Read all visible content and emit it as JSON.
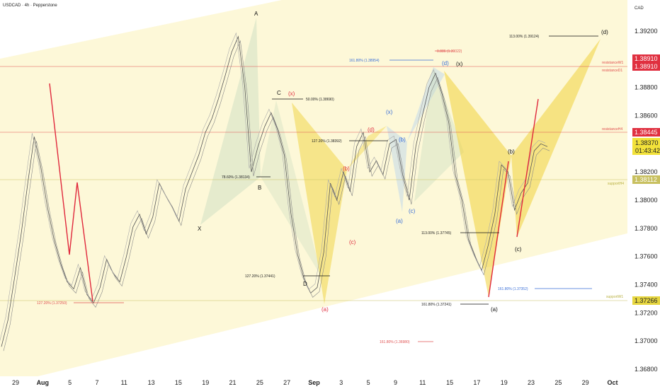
{
  "header": {
    "title": "USDCAD · 4h · Pepperstone",
    "currency": "CAD"
  },
  "chart_data": {
    "type": "line",
    "symbol": "USDCAD",
    "timeframe": "4h",
    "broker": "Pepperstone",
    "x_ticks": [
      "29",
      "Aug",
      "5",
      "7",
      "11",
      "13",
      "15",
      "19",
      "21",
      "25",
      "27",
      "Sep",
      "3",
      "5",
      "9",
      "11",
      "15",
      "17",
      "19",
      "23",
      "25",
      "29",
      "Oct"
    ],
    "y_ticks": [
      "1.39200",
      "1.39000",
      "1.38800",
      "1.38600",
      "1.38400",
      "1.38200",
      "1.38000",
      "1.37800",
      "1.37600",
      "1.37400",
      "1.37200",
      "1.37000",
      "1.36800"
    ],
    "y_range": [
      1.3675,
      1.3938
    ],
    "series": [
      {
        "values": [
          1.3696,
          1.3715,
          1.3745,
          1.3776,
          1.3812,
          1.3845,
          1.3823,
          1.3795,
          1.3772,
          1.3755,
          1.3742,
          1.3737,
          1.3752,
          1.3733,
          1.3727,
          1.3738,
          1.3758,
          1.3748,
          1.3742,
          1.376,
          1.3781,
          1.379,
          1.3776,
          1.3788,
          1.3812,
          1.3803,
          1.3795,
          1.3785,
          1.3808,
          1.382,
          1.3832,
          1.3848,
          1.3858,
          1.3872,
          1.3888,
          1.3905,
          1.3916,
          1.388,
          1.382,
          1.3838,
          1.3852,
          1.3862,
          1.385,
          1.3832,
          1.3791,
          1.3762,
          1.3744,
          1.3734,
          1.3738,
          1.3763,
          1.3812,
          1.38,
          1.382,
          1.3806,
          1.3838,
          1.3848,
          1.382,
          1.3828,
          1.3818,
          1.384,
          1.3843,
          1.3818,
          1.38,
          1.3838,
          1.386,
          1.388,
          1.389,
          1.3875,
          1.3855,
          1.3818,
          1.38,
          1.3772,
          1.376,
          1.375,
          1.3768,
          1.379,
          1.3825,
          1.382,
          1.3793,
          1.3805,
          1.3812,
          1.3835,
          1.384,
          1.3838
        ]
      }
    ],
    "horizontal_levels": [
      {
        "label": "resistanceW1",
        "value": 1.3891,
        "price": "1.38910"
      },
      {
        "label": "resistanceD1",
        "value": 1.3891,
        "price": "1.38910"
      },
      {
        "label": "resistanceH4",
        "value": 1.38445,
        "price": "1.38445"
      },
      {
        "label": "supportH4",
        "value": 1.38112,
        "price": "1.38112"
      },
      {
        "label": "supportW1",
        "value": 1.37266,
        "price": "1.37266"
      }
    ],
    "current_price": {
      "price": "1.38370",
      "countdown": "01:43:42"
    },
    "fib_annotations": [
      {
        "text": "127.20% (1.37250)",
        "color": "#e05050"
      },
      {
        "text": "78.60% (1.38134)",
        "color": "#222222"
      },
      {
        "text": "50.00% (1.38690)",
        "color": "#222222"
      },
      {
        "text": "127.20% (1.37441)",
        "color": "#222222"
      },
      {
        "text": "127.20% (1.38392)",
        "color": "#222222"
      },
      {
        "text": "161.80% (1.38954)",
        "color": "#3a6fd8"
      },
      {
        "text": "0.886 (1.39022)",
        "color": "#e05050"
      },
      {
        "text": "113.00% (1.39124)",
        "color": "#222222"
      },
      {
        "text": "113.00% (1.37745)",
        "color": "#222222"
      },
      {
        "text": "161.80% (1.37241)",
        "color": "#222222"
      },
      {
        "text": "161.80% (1.37352)",
        "color": "#3a6fd8"
      },
      {
        "text": "161.80% (1.36980)",
        "color": "#e05050"
      }
    ],
    "wave_labels": [
      {
        "text": "A",
        "color": "#111111"
      },
      {
        "text": "X",
        "color": "#111111"
      },
      {
        "text": "B",
        "color": "#111111"
      },
      {
        "text": "C",
        "color": "#111111"
      },
      {
        "text": "D",
        "color": "#111111"
      },
      {
        "text": "(x)",
        "color": "#e03040"
      },
      {
        "text": "(a)",
        "color": "#e03040"
      },
      {
        "text": "(b)",
        "color": "#e03040"
      },
      {
        "text": "(c)",
        "color": "#e03040"
      },
      {
        "text": "(d)",
        "color": "#e03040"
      },
      {
        "text": "(x)",
        "color": "#3a6fd8"
      },
      {
        "text": "(a)",
        "color": "#3a6fd8"
      },
      {
        "text": "(b)",
        "color": "#3a6fd8"
      },
      {
        "text": "(c)",
        "color": "#3a6fd8"
      },
      {
        "text": "(d)",
        "color": "#3a6fd8"
      },
      {
        "text": "(x)",
        "color": "#111111"
      },
      {
        "text": "(a)",
        "color": "#111111"
      },
      {
        "text": "(b)",
        "color": "#111111"
      },
      {
        "text": "(c)",
        "color": "#111111"
      },
      {
        "text": "(d)",
        "color": "#111111"
      }
    ],
    "colors": {
      "channel_fill": "#fdf8d8",
      "pattern_yellow": "#f0d23c",
      "pattern_green": "#c8dcc0",
      "pattern_blue": "#c8dcea",
      "impulse_red": "#e0283c",
      "resistance": "#e05050",
      "support": "#c8c060",
      "price_badge": "#f2e23a"
    }
  }
}
